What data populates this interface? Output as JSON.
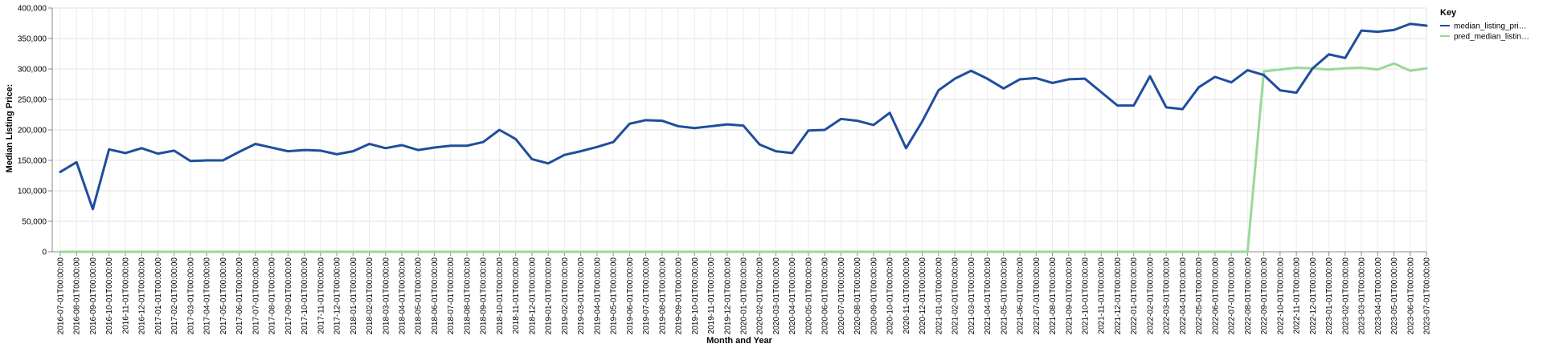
{
  "chart_data": {
    "type": "line",
    "title": "",
    "xlabel": "Month and Year",
    "ylabel": "Median Listing Price:",
    "ylim": [
      0,
      400000
    ],
    "yticks": [
      "0",
      "50,000",
      "100,000",
      "150,000",
      "200,000",
      "250,000",
      "300,000",
      "350,000",
      "400,000"
    ],
    "ytick_values": [
      0,
      50000,
      100000,
      150000,
      200000,
      250000,
      300000,
      350000,
      400000
    ],
    "grid": true,
    "legend": {
      "title": "Key",
      "position": "top-right"
    },
    "x": [
      "2016-07-01T00:00:00",
      "2016-08-01T00:00:00",
      "2016-09-01T00:00:00",
      "2016-10-01T00:00:00",
      "2016-11-01T00:00:00",
      "2016-12-01T00:00:00",
      "2017-01-01T00:00:00",
      "2017-02-01T00:00:00",
      "2017-03-01T00:00:00",
      "2017-04-01T00:00:00",
      "2017-05-01T00:00:00",
      "2017-06-01T00:00:00",
      "2017-07-01T00:00:00",
      "2017-08-01T00:00:00",
      "2017-09-01T00:00:00",
      "2017-10-01T00:00:00",
      "2017-11-01T00:00:00",
      "2017-12-01T00:00:00",
      "2018-01-01T00:00:00",
      "2018-02-01T00:00:00",
      "2018-03-01T00:00:00",
      "2018-04-01T00:00:00",
      "2018-05-01T00:00:00",
      "2018-06-01T00:00:00",
      "2018-07-01T00:00:00",
      "2018-08-01T00:00:00",
      "2018-09-01T00:00:00",
      "2018-10-01T00:00:00",
      "2018-11-01T00:00:00",
      "2018-12-01T00:00:00",
      "2019-01-01T00:00:00",
      "2019-02-01T00:00:00",
      "2019-03-01T00:00:00",
      "2019-04-01T00:00:00",
      "2019-05-01T00:00:00",
      "2019-06-01T00:00:00",
      "2019-07-01T00:00:00",
      "2019-08-01T00:00:00",
      "2019-09-01T00:00:00",
      "2019-10-01T00:00:00",
      "2019-11-01T00:00:00",
      "2019-12-01T00:00:00",
      "2020-01-01T00:00:00",
      "2020-02-01T00:00:00",
      "2020-03-01T00:00:00",
      "2020-04-01T00:00:00",
      "2020-05-01T00:00:00",
      "2020-06-01T00:00:00",
      "2020-07-01T00:00:00",
      "2020-08-01T00:00:00",
      "2020-09-01T00:00:00",
      "2020-10-01T00:00:00",
      "2020-11-01T00:00:00",
      "2020-12-01T00:00:00",
      "2021-01-01T00:00:00",
      "2021-02-01T00:00:00",
      "2021-03-01T00:00:00",
      "2021-04-01T00:00:00",
      "2021-05-01T00:00:00",
      "2021-06-01T00:00:00",
      "2021-07-01T00:00:00",
      "2021-08-01T00:00:00",
      "2021-09-01T00:00:00",
      "2021-10-01T00:00:00",
      "2021-11-01T00:00:00",
      "2021-12-01T00:00:00",
      "2022-01-01T00:00:00",
      "2022-02-01T00:00:00",
      "2022-03-01T00:00:00",
      "2022-04-01T00:00:00",
      "2022-05-01T00:00:00",
      "2022-06-01T00:00:00",
      "2022-07-01T00:00:00",
      "2022-08-01T00:00:00",
      "2022-09-01T00:00:00",
      "2022-10-01T00:00:00",
      "2022-11-01T00:00:00",
      "2022-12-01T00:00:00",
      "2023-01-01T00:00:00",
      "2023-02-01T00:00:00",
      "2023-03-01T00:00:00",
      "2023-04-01T00:00:00",
      "2023-05-01T00:00:00",
      "2023-06-01T00:00:00",
      "2023-07-01T00:00:00"
    ],
    "series": [
      {
        "name": "median_listing_pri…",
        "color": "#1f4e9c",
        "values": [
          131000,
          147000,
          70000,
          168000,
          162000,
          170000,
          161000,
          166000,
          149000,
          150000,
          150000,
          164000,
          177000,
          171000,
          165000,
          167000,
          166000,
          160000,
          165000,
          177000,
          170000,
          175000,
          167000,
          171000,
          174000,
          174000,
          180000,
          200000,
          185000,
          152000,
          145000,
          159000,
          165000,
          172000,
          180000,
          210000,
          216000,
          215000,
          206000,
          203000,
          206000,
          209000,
          207000,
          176000,
          165000,
          162000,
          199000,
          200000,
          218000,
          215000,
          208000,
          228000,
          170000,
          214000,
          265000,
          284000,
          297000,
          284000,
          268000,
          283000,
          285000,
          277000,
          283000,
          284000,
          262000,
          240000,
          240000,
          288000,
          237000,
          234000,
          270000,
          287000,
          278000,
          298000,
          290000,
          265000,
          261000,
          301000,
          324000,
          318000,
          363000,
          361000,
          364000,
          374000,
          371000
        ]
      },
      {
        "name": "pred_median_listin…",
        "color": "#98d99a",
        "values": [
          0,
          0,
          0,
          0,
          0,
          0,
          0,
          0,
          0,
          0,
          0,
          0,
          0,
          0,
          0,
          0,
          0,
          0,
          0,
          0,
          0,
          0,
          0,
          0,
          0,
          0,
          0,
          0,
          0,
          0,
          0,
          0,
          0,
          0,
          0,
          0,
          0,
          0,
          0,
          0,
          0,
          0,
          0,
          0,
          0,
          0,
          0,
          0,
          0,
          0,
          0,
          0,
          0,
          0,
          0,
          0,
          0,
          0,
          0,
          0,
          0,
          0,
          0,
          0,
          0,
          0,
          0,
          0,
          0,
          0,
          0,
          0,
          0,
          0,
          296000,
          299000,
          302000,
          301000,
          299000,
          301000,
          302000,
          299000,
          309000,
          297000,
          301000
        ]
      }
    ]
  }
}
